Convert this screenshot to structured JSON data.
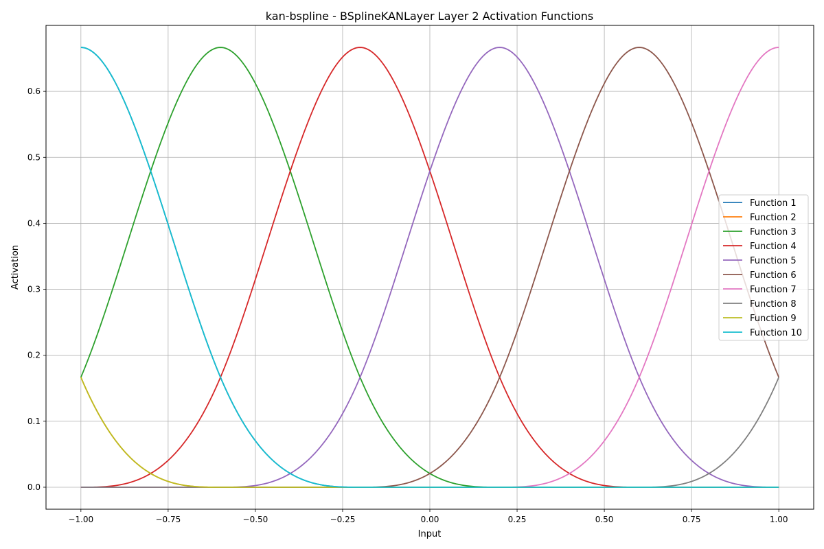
{
  "chart_data": {
    "type": "line",
    "title": "kan-bspline - BSplineKANLayer Layer 2 Activation Functions",
    "xlabel": "Input",
    "ylabel": "Activation",
    "xlim": [
      -1.1,
      1.1
    ],
    "ylim": [
      -0.0333,
      0.7
    ],
    "grid": true,
    "legend_position": "center-right",
    "x_ticks": [
      -1.0,
      -0.75,
      -0.5,
      -0.25,
      0.0,
      0.25,
      0.5,
      0.75,
      1.0
    ],
    "x_tick_labels": [
      "−1.00",
      "−0.75",
      "−0.50",
      "−0.25",
      "0.00",
      "0.25",
      "0.50",
      "0.75",
      "1.00"
    ],
    "y_ticks": [
      0.0,
      0.1,
      0.2,
      0.3,
      0.4,
      0.5,
      0.6
    ],
    "y_tick_labels": [
      "0.0",
      "0.1",
      "0.2",
      "0.3",
      "0.4",
      "0.5",
      "0.6"
    ],
    "x_range": [
      -1.0,
      1.0
    ],
    "basis": {
      "spacing": 0.4,
      "degree": 3,
      "peak": 0.6667
    },
    "series": [
      {
        "name": "Function 1",
        "color": "#1f77b4",
        "center": -1.0
      },
      {
        "name": "Function 2",
        "color": "#ff7f0e",
        "center": -1.4
      },
      {
        "name": "Function 3",
        "color": "#2ca02c",
        "center": -0.6
      },
      {
        "name": "Function 4",
        "color": "#d62728",
        "center": -0.2
      },
      {
        "name": "Function 5",
        "color": "#9467bd",
        "center": 0.2
      },
      {
        "name": "Function 6",
        "color": "#8c564b",
        "center": 0.6
      },
      {
        "name": "Function 7",
        "color": "#e377c2",
        "center": 1.0
      },
      {
        "name": "Function 8",
        "color": "#7f7f7f",
        "center": 1.4
      },
      {
        "name": "Function 9",
        "color": "#bcbd22",
        "center": -1.4
      },
      {
        "name": "Function 10",
        "color": "#17becf",
        "center": -1.0
      }
    ]
  }
}
